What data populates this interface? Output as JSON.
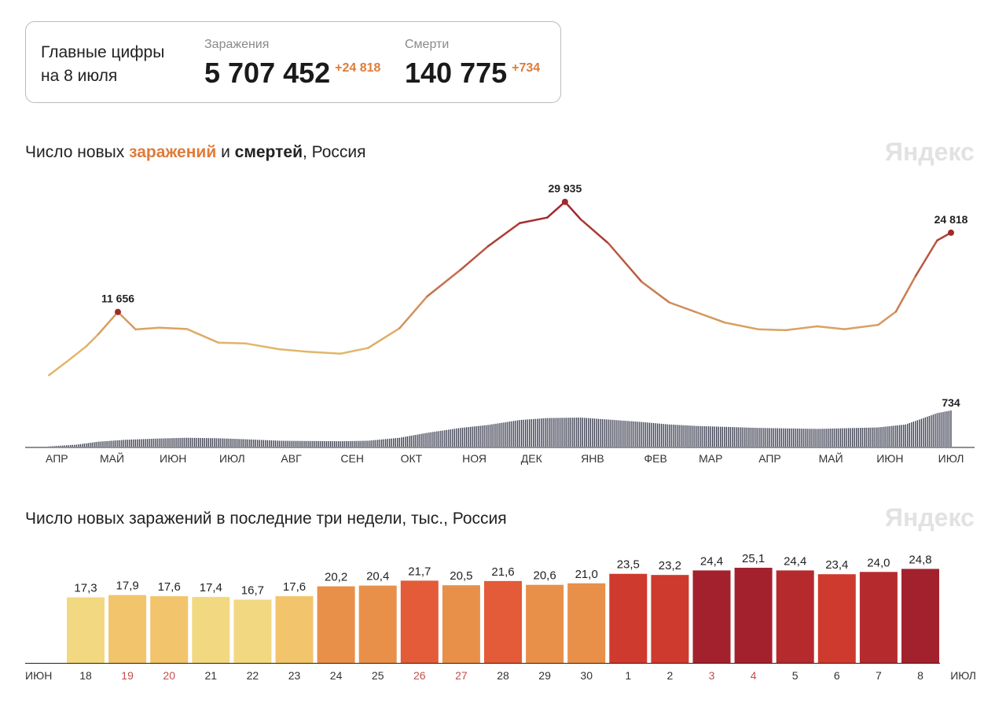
{
  "summary": {
    "heading_line1": "Главные цифры",
    "heading_line2": "на 8 июля",
    "infections_label": "Заражения",
    "infections_total": "5 707 452",
    "infections_delta": "+24 818",
    "deaths_label": "Смерти",
    "deaths_total": "140 775",
    "deaths_delta": "+734"
  },
  "logo": "Яндекс",
  "chart1_title": {
    "part1": "Число новых ",
    "part2": "заражений",
    "part3": " и ",
    "part4": "смертей",
    "part5": ", Россия"
  },
  "chart2_title": "Число новых заражений в последние три недели, тыс., Россия",
  "colors": {
    "accent": "#e07b39",
    "line_low": "#e2b66a",
    "line_high": "#a3262b",
    "deaths": "#3d3f52"
  },
  "chart_data": [
    {
      "type": "line",
      "title": "Число новых заражений и смертей, Россия",
      "x_tick_labels": [
        "АПР",
        "МАЙ",
        "ИЮН",
        "ИЮЛ",
        "АВГ",
        "СЕН",
        "ОКТ",
        "НОЯ",
        "ДЕК",
        "ЯНВ",
        "ФЕВ",
        "МАР",
        "АПР",
        "МАЙ",
        "ИЮН",
        "ИЮЛ"
      ],
      "x_tick_dates": [
        "2020-04-10",
        "2020-05-08",
        "2020-06-08",
        "2020-07-08",
        "2020-08-07",
        "2020-09-07",
        "2020-10-07",
        "2020-11-08",
        "2020-12-07",
        "2021-01-07",
        "2021-02-08",
        "2021-03-08",
        "2021-04-07",
        "2021-05-08",
        "2021-06-07",
        "2021-07-08"
      ],
      "series": [
        {
          "name": "заражений",
          "points": [
            [
              "2020-04-06",
              1154
            ],
            [
              "2020-04-15",
              3388
            ],
            [
              "2020-04-25",
              5966
            ],
            [
              "2020-05-01",
              7933
            ],
            [
              "2020-05-11",
              11656
            ],
            [
              "2020-05-20",
              8764
            ],
            [
              "2020-06-01",
              9035
            ],
            [
              "2020-06-15",
              8835
            ],
            [
              "2020-07-01",
              6556
            ],
            [
              "2020-07-15",
              6422
            ],
            [
              "2020-08-01",
              5462
            ],
            [
              "2020-08-15",
              5061
            ],
            [
              "2020-09-01",
              4729
            ],
            [
              "2020-09-15",
              5670
            ],
            [
              "2020-10-01",
              8945
            ],
            [
              "2020-10-15",
              14231
            ],
            [
              "2020-11-01",
              18665
            ],
            [
              "2020-11-15",
              22572
            ],
            [
              "2020-12-01",
              26402
            ],
            [
              "2020-12-15",
              27328
            ],
            [
              "2020-12-24",
              29935
            ],
            [
              "2021-01-01",
              27029
            ],
            [
              "2021-01-15",
              23060
            ],
            [
              "2021-02-01",
              16643
            ],
            [
              "2021-02-15",
              13233
            ],
            [
              "2021-03-01",
              11571
            ],
            [
              "2021-03-15",
              9908
            ],
            [
              "2021-04-01",
              8787
            ],
            [
              "2021-04-15",
              8632
            ],
            [
              "2021-05-01",
              9270
            ],
            [
              "2021-05-15",
              8801
            ],
            [
              "2021-06-01",
              9507
            ],
            [
              "2021-06-10",
              11699
            ],
            [
              "2021-06-20",
              17611
            ],
            [
              "2021-07-01",
              23543
            ],
            [
              "2021-07-08",
              24818
            ]
          ],
          "labeled_points": [
            {
              "date": "2020-05-11",
              "label": "11 656"
            },
            {
              "date": "2020-12-24",
              "label": "29 935"
            },
            {
              "date": "2021-07-08",
              "label": "24 818"
            }
          ]
        },
        {
          "name": "смертей",
          "type": "bar",
          "points": [
            [
              "2020-04-06",
              5
            ],
            [
              "2020-04-20",
              40
            ],
            [
              "2020-05-01",
              100
            ],
            [
              "2020-05-15",
              140
            ],
            [
              "2020-06-01",
              165
            ],
            [
              "2020-06-15",
              180
            ],
            [
              "2020-07-01",
              170
            ],
            [
              "2020-07-15",
              150
            ],
            [
              "2020-08-01",
              120
            ],
            [
              "2020-09-01",
              110
            ],
            [
              "2020-09-15",
              120
            ],
            [
              "2020-10-01",
              180
            ],
            [
              "2020-10-15",
              280
            ],
            [
              "2020-11-01",
              380
            ],
            [
              "2020-11-15",
              440
            ],
            [
              "2020-12-01",
              540
            ],
            [
              "2020-12-15",
              580
            ],
            [
              "2021-01-01",
              590
            ],
            [
              "2021-01-15",
              550
            ],
            [
              "2021-02-01",
              500
            ],
            [
              "2021-02-15",
              450
            ],
            [
              "2021-03-01",
              420
            ],
            [
              "2021-04-01",
              380
            ],
            [
              "2021-05-01",
              360
            ],
            [
              "2021-06-01",
              390
            ],
            [
              "2021-06-15",
              450
            ],
            [
              "2021-07-01",
              680
            ],
            [
              "2021-07-08",
              734
            ]
          ],
          "labeled_points": [
            {
              "date": "2021-07-08",
              "label": "734"
            }
          ]
        }
      ]
    },
    {
      "type": "bar",
      "title": "Число новых заражений в последние три недели, тыс., Россия",
      "x_start_label": "ИЮН",
      "x_end_label": "ИЮЛ",
      "categories": [
        "18",
        "19",
        "20",
        "21",
        "22",
        "23",
        "24",
        "25",
        "26",
        "27",
        "28",
        "29",
        "30",
        "1",
        "2",
        "3",
        "4",
        "5",
        "6",
        "7",
        "8"
      ],
      "weekend": [
        false,
        true,
        true,
        false,
        false,
        false,
        false,
        false,
        true,
        true,
        false,
        false,
        false,
        false,
        false,
        true,
        true,
        false,
        false,
        false,
        false
      ],
      "values": [
        17.3,
        17.9,
        17.6,
        17.4,
        16.7,
        17.6,
        20.2,
        20.4,
        21.7,
        20.5,
        21.6,
        20.6,
        21.0,
        23.5,
        23.2,
        24.4,
        25.1,
        24.4,
        23.4,
        24.0,
        24.8
      ],
      "value_labels": [
        "17,3",
        "17,9",
        "17,6",
        "17,4",
        "16,7",
        "17,6",
        "20,2",
        "20,4",
        "21,7",
        "20,5",
        "21,6",
        "20,6",
        "21,0",
        "23,5",
        "23,2",
        "24,4",
        "25,1",
        "24,4",
        "23,4",
        "24,0",
        "24,8"
      ],
      "bar_colors": [
        "#f3d882",
        "#f2c46c",
        "#f2c46c",
        "#f3d882",
        "#f3d882",
        "#f2c46c",
        "#e8904a",
        "#e8904a",
        "#e35b38",
        "#e8904a",
        "#e35b38",
        "#e8904a",
        "#e8904a",
        "#cf3a2e",
        "#cf3a2e",
        "#a3212d",
        "#a3212d",
        "#b52a2c",
        "#cf3a2e",
        "#b52a2c",
        "#a3212d"
      ]
    }
  ]
}
